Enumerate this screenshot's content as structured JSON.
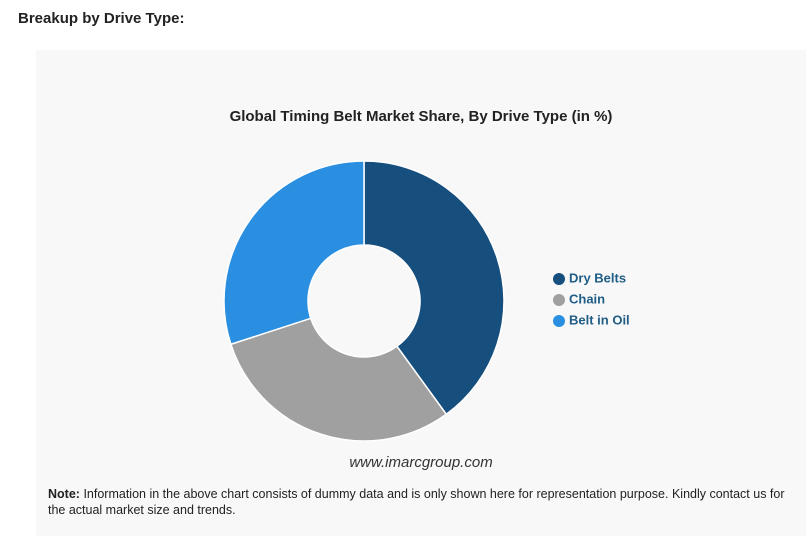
{
  "header": "Breakup by Drive Type:",
  "chart_data": {
    "type": "donut",
    "title": "Global Timing Belt Market Share, By Drive Type (in %)",
    "categories": [
      "Dry Belts",
      "Chain",
      "Belt in Oil"
    ],
    "values": [
      40,
      30,
      30
    ],
    "colors": [
      "#164e7d",
      "#a0a0a0",
      "#2a8fe0"
    ],
    "legend": "right",
    "watermark": "www.imarcgroup.com"
  },
  "note": {
    "label": "Note:",
    "text": "Information in the above chart consists of dummy data and is only shown here for representation purpose. Kindly contact us for the actual market size and trends."
  }
}
